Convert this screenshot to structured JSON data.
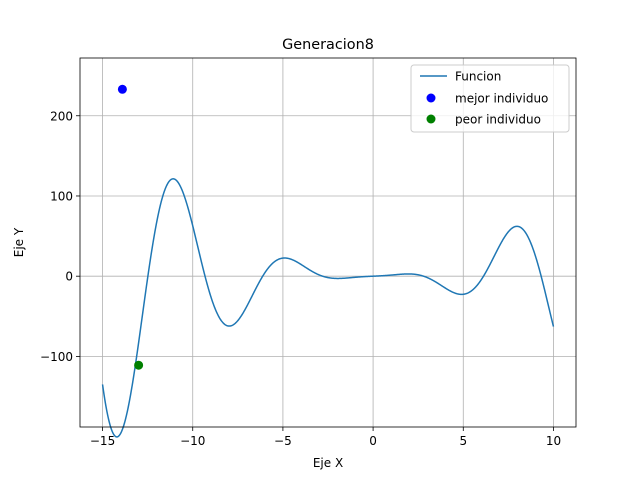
{
  "chart_data": {
    "type": "line",
    "title": "Generacion8",
    "xlabel": "Eje X",
    "ylabel": "Eje Y",
    "xlim": [
      -16.25,
      11.25
    ],
    "ylim": [
      -188,
      272
    ],
    "grid": true,
    "legend_position": "top-right",
    "xticks": [
      -15,
      -10,
      -5,
      0,
      5,
      10
    ],
    "xtick_labels": [
      "−15",
      "−10",
      "−5",
      "0",
      "5",
      "10"
    ],
    "yticks": [
      -100,
      0,
      100,
      200
    ],
    "ytick_labels": [
      "−100",
      "0",
      "100",
      "200"
    ],
    "function": {
      "x_range": [
        -15,
        10
      ],
      "note": "sampled curve y = x*cos(x) + x^2*sin(x)"
    },
    "series": [
      {
        "name": "Funcion",
        "kind": "line",
        "color": "#1f77b4"
      },
      {
        "name": "mejor individuo",
        "kind": "scatter",
        "color": "#0000ff",
        "x": [
          -13.9
        ],
        "y": [
          233
        ]
      },
      {
        "name": "peor individuo",
        "kind": "scatter",
        "color": "#008000",
        "x": [
          -13.0
        ],
        "y": [
          -111
        ]
      }
    ]
  }
}
